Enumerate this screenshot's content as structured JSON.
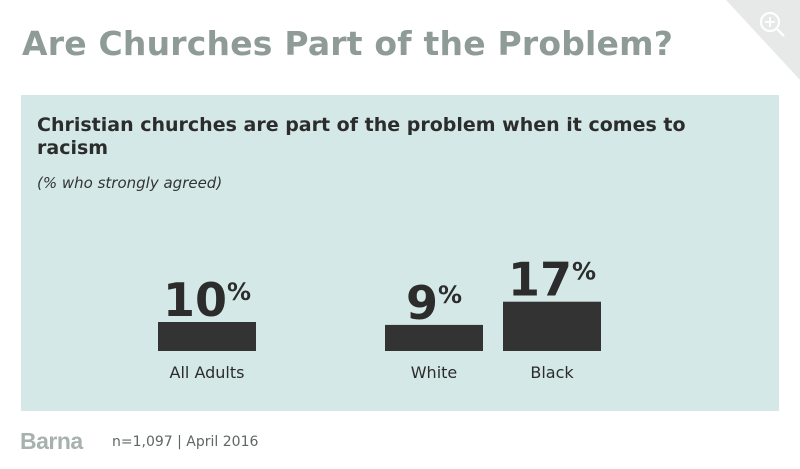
{
  "page": {
    "title": "Are Churches Part of the Problem?",
    "zoom_icon": "zoom-in-icon"
  },
  "chart_data": {
    "type": "bar",
    "title": "Christian churches are part of the problem when it comes to racism",
    "subtitle": "(% who strongly agreed)",
    "categories": [
      "All Adults",
      "White",
      "Black"
    ],
    "values": [
      10,
      9,
      17
    ],
    "value_labels": [
      "10%",
      "9%",
      "17%"
    ],
    "unit": "%",
    "bar_color": "#333333",
    "background_color": "#d4e8e8"
  },
  "footer": {
    "logo": "Barna",
    "note": "n=1,097 | April 2016"
  }
}
